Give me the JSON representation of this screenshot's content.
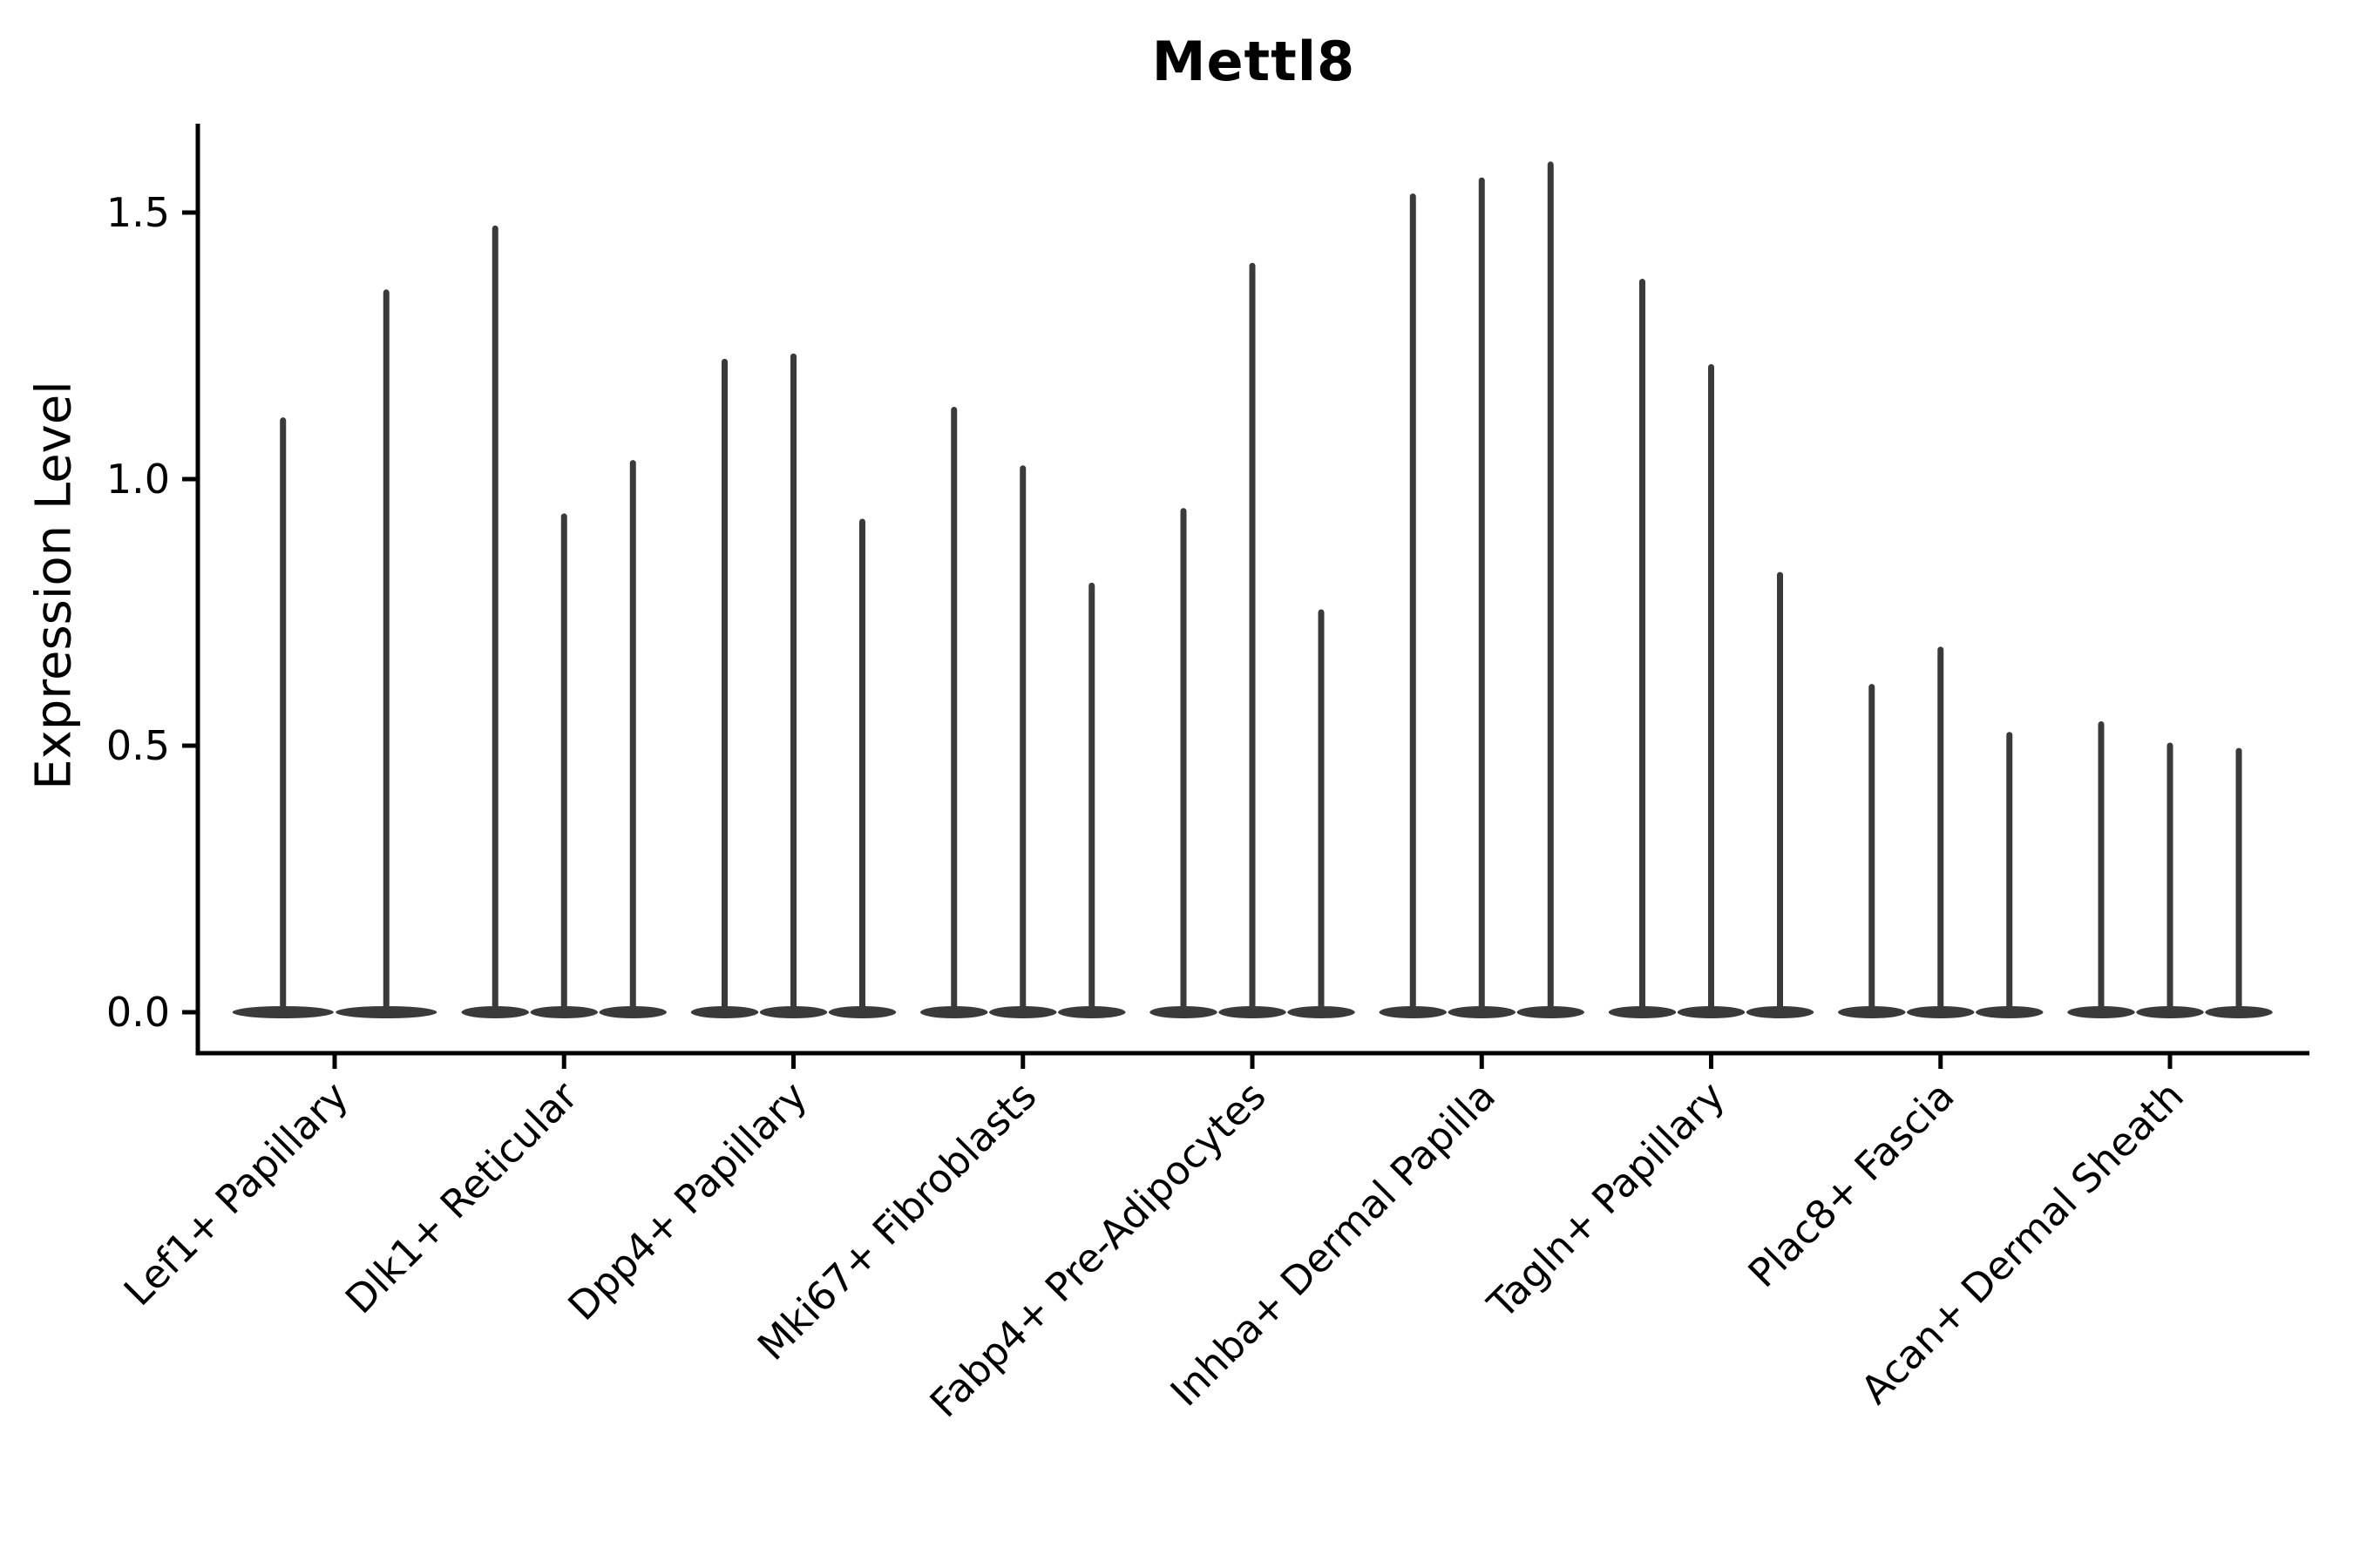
{
  "chart_data": {
    "type": "violin",
    "title": "Mettl8",
    "xlabel": "",
    "ylabel": "Expression Level",
    "yticks": [
      "0.0",
      "0.5",
      "1.0",
      "1.5"
    ],
    "ylim": [
      -0.08,
      1.67
    ],
    "grid": false,
    "legend": "none",
    "violin_color": "#3a3a3a",
    "axis_color": "#000000",
    "categories": [
      "Lef1+ Papillary",
      "Dlk1+ Reticular",
      "Dpp4+ Papillary",
      "Mki67+ Fibroblasts",
      "Fabp4+ Pre-Adipocytes",
      "Inhba+ Dermal Papilla",
      "Tagln+ Papillary",
      "Plac8+ Fascia",
      "Acan+ Dermal Sheath"
    ],
    "violins": [
      {
        "category": "Lef1+ Papillary",
        "maxima": [
          1.11,
          1.35
        ]
      },
      {
        "category": "Dlk1+ Reticular",
        "maxima": [
          1.47,
          0.93,
          1.03
        ]
      },
      {
        "category": "Dpp4+ Papillary",
        "maxima": [
          1.22,
          1.23,
          0.92
        ]
      },
      {
        "category": "Mki67+ Fibroblasts",
        "maxima": [
          1.13,
          1.02,
          0.8
        ]
      },
      {
        "category": "Fabp4+ Pre-Adipocytes",
        "maxima": [
          0.94,
          1.4,
          0.75
        ]
      },
      {
        "category": "Inhba+ Dermal Papilla",
        "maxima": [
          1.53,
          1.56,
          1.59
        ]
      },
      {
        "category": "Tagln+ Papillary",
        "maxima": [
          1.37,
          1.21,
          0.82
        ]
      },
      {
        "category": "Plac8+ Fascia",
        "maxima": [
          0.61,
          0.68,
          0.52
        ]
      },
      {
        "category": "Acan+ Dermal Sheath",
        "maxima": [
          0.54,
          0.5,
          0.49
        ]
      }
    ]
  }
}
